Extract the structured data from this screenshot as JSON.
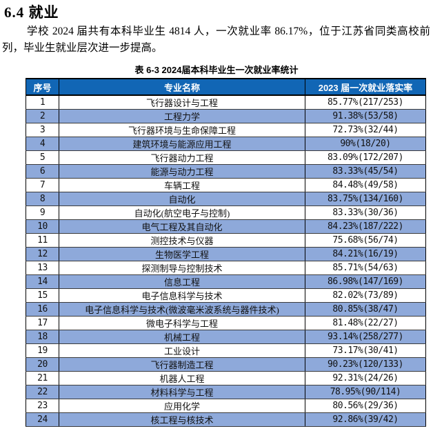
{
  "doc": {
    "heading": "6.4 就业",
    "paragraph": "学校 2024 届共有本科毕业生 4814 人，一次就业率 86.17%，位于江苏省同类高校前列，毕业生就业层次进一步提高。",
    "caption": "表 6-3 2024届本科毕业生一次就业率统计"
  },
  "table": {
    "headers": [
      "序号",
      "专业名称",
      "2023 届一次就业落实率"
    ],
    "rows": [
      {
        "no": "1",
        "major": "飞行器设计与工程",
        "rate": "85.77%(217/253)"
      },
      {
        "no": "2",
        "major": "工程力学",
        "rate": "91.38%(53/58)"
      },
      {
        "no": "3",
        "major": "飞行器环境与生命保障工程",
        "rate": "72.73%(32/44)"
      },
      {
        "no": "4",
        "major": "建筑环境与能源应用工程",
        "rate": "90%(18/20)"
      },
      {
        "no": "5",
        "major": "飞行器动力工程",
        "rate": "83.09%(172/207)"
      },
      {
        "no": "6",
        "major": "能源与动力工程",
        "rate": "83.33%(45/54)"
      },
      {
        "no": "7",
        "major": "车辆工程",
        "rate": "84.48%(49/58)"
      },
      {
        "no": "8",
        "major": "自动化",
        "rate": "83.75%(134/160)"
      },
      {
        "no": "9",
        "major": "自动化(航空电子与控制)",
        "rate": "83.33%(30/36)"
      },
      {
        "no": "10",
        "major": "电气工程及其自动化",
        "rate": "84.23%(187/222)"
      },
      {
        "no": "11",
        "major": "测控技术与仪器",
        "rate": "75.68%(56/74)"
      },
      {
        "no": "12",
        "major": "生物医学工程",
        "rate": "84.21%(16/19)"
      },
      {
        "no": "13",
        "major": "探测制导与控制技术",
        "rate": "85.71%(54/63)"
      },
      {
        "no": "14",
        "major": "信息工程",
        "rate": "86.98%(147/169)"
      },
      {
        "no": "15",
        "major": "电子信息科学与技术",
        "rate": "82.02%(73/89)"
      },
      {
        "no": "16",
        "major": "电子信息科学与技术(微波毫米波系统与器件技术)",
        "rate": "80.85%(38/47)"
      },
      {
        "no": "17",
        "major": "微电子科学与工程",
        "rate": "81.48%(22/27)"
      },
      {
        "no": "18",
        "major": "机械工程",
        "rate": "93.14%(258/277)"
      },
      {
        "no": "19",
        "major": "工业设计",
        "rate": "73.17%(30/41)"
      },
      {
        "no": "20",
        "major": "飞行器制造工程",
        "rate": "90.23%(120/133)"
      },
      {
        "no": "21",
        "major": "机器人工程",
        "rate": "92.31%(24/26)"
      },
      {
        "no": "22",
        "major": "材料科学与工程",
        "rate": "78.95%(90/114)"
      },
      {
        "no": "23",
        "major": "应用化学",
        "rate": "80.56%(29/36)"
      },
      {
        "no": "24",
        "major": "核工程与核技术",
        "rate": "92.86%(39/42)"
      }
    ]
  },
  "colors": {
    "header_bg": "#1166B5",
    "header_text": "#FFFFFF",
    "stripe_bg": "#8EA9DA"
  }
}
